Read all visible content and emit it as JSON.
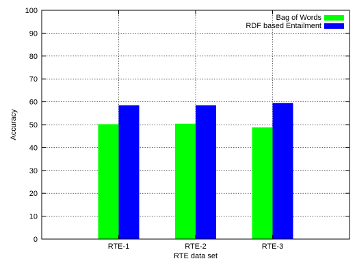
{
  "chart_data": {
    "type": "bar",
    "title": "",
    "xlabel": "RTE data set",
    "ylabel": "Accuracy",
    "categories": [
      "RTE-1",
      "RTE-2",
      "RTE-3"
    ],
    "ylim": [
      0,
      100
    ],
    "yticks": [
      0,
      10,
      20,
      30,
      40,
      50,
      60,
      70,
      80,
      90,
      100
    ],
    "xlim": [
      0,
      4
    ],
    "grid": true,
    "legend_position": "top-right",
    "series": [
      {
        "name": "Bag of Words",
        "color": "#00ff00",
        "values": [
          50.2,
          50.4,
          48.8
        ]
      },
      {
        "name": "RDF based Entailment",
        "color": "#0000ff",
        "values": [
          58.5,
          58.5,
          59.5
        ]
      }
    ]
  }
}
